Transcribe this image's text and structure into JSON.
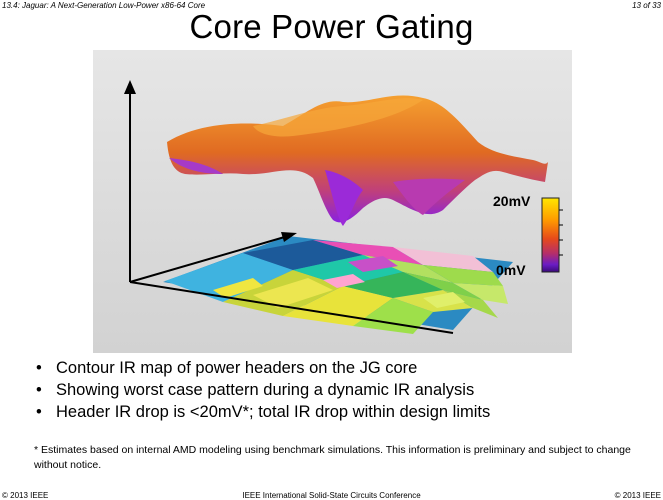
{
  "header": {
    "left": "13.4: Jaguar: A Next-Generation Low-Power x86-64 Core",
    "right": "13 of 33"
  },
  "title": "Core Power Gating",
  "figure": {
    "color_scale": {
      "max_label": "20mV",
      "min_label": "0mV",
      "colors": [
        "#ffe600",
        "#ff9a00",
        "#e64a1a",
        "#b52e6a",
        "#6a1cc4",
        "#3a0a7a"
      ]
    },
    "surface_colors": {
      "high": "#f07a1a",
      "mid": "#d8582a",
      "low": "#a42ec8"
    }
  },
  "bullets": [
    "Contour IR map of power headers on the JG core",
    "Showing worst case pattern during a dynamic IR analysis",
    "Header IR drop is <20mV*; total IR drop within design limits"
  ],
  "bullet_symbol": "•",
  "footnote": "* Estimates based on internal AMD modeling using benchmark simulations. This information is preliminary and subject to change  without notice.",
  "footer": {
    "left": "© 2013 IEEE",
    "center": "IEEE International Solid-State Circuits Conference",
    "right": "© 2013 IEEE"
  }
}
